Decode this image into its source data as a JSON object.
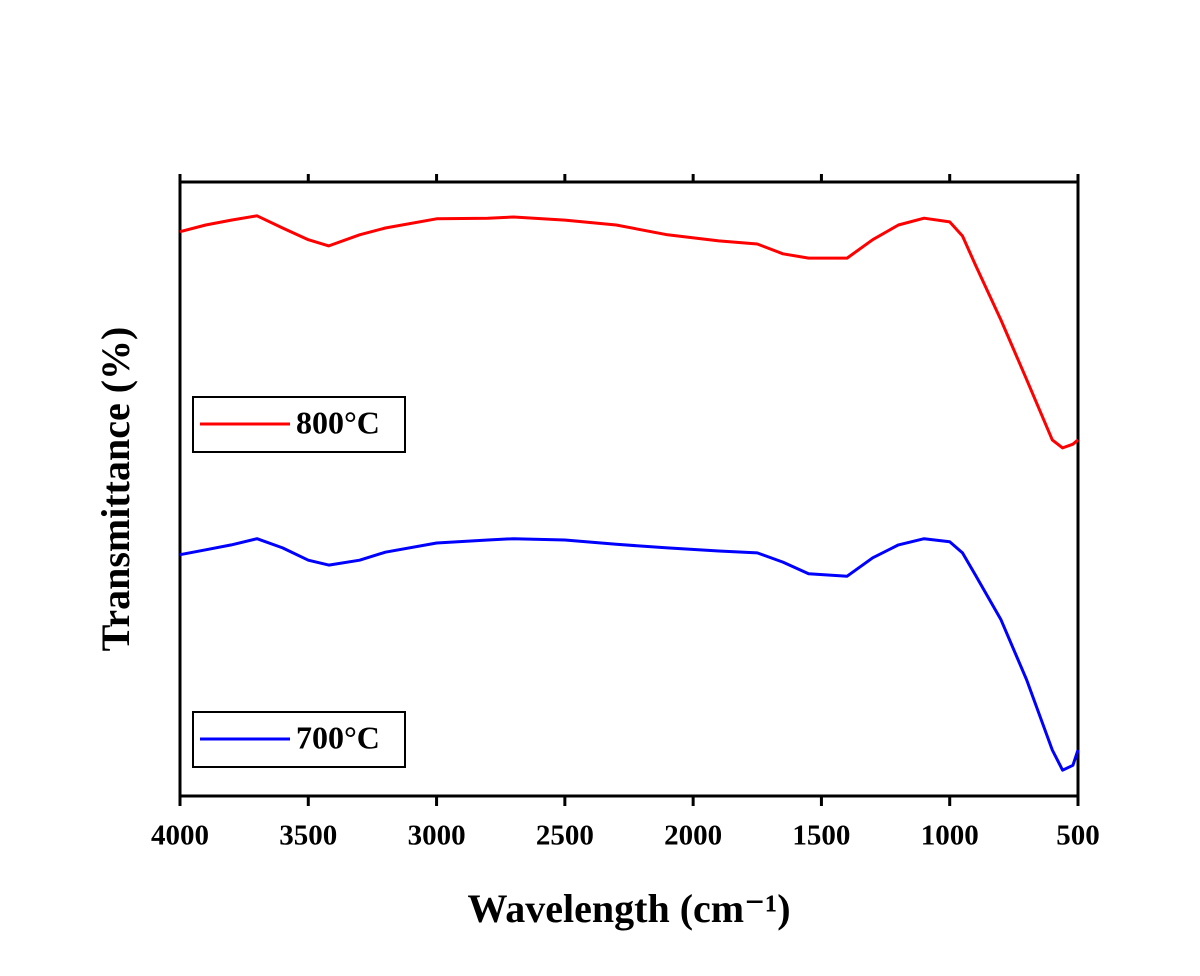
{
  "chart_data": {
    "type": "line",
    "xlabel": "Wavelength (cm⁻¹)",
    "ylabel": "Transmittance (%)",
    "xlim": [
      4000,
      500
    ],
    "xticks": [
      4000,
      3500,
      3000,
      2500,
      2000,
      1500,
      1000,
      500
    ],
    "ylim": [
      0,
      100
    ],
    "x": [
      4000,
      3900,
      3800,
      3700,
      3600,
      3500,
      3420,
      3300,
      3200,
      3000,
      2800,
      2700,
      2500,
      2300,
      2100,
      1900,
      1750,
      1650,
      1550,
      1400,
      1300,
      1200,
      1100,
      1000,
      950,
      900,
      800,
      700,
      600,
      560,
      520,
      500
    ],
    "series": [
      {
        "name": "800°C",
        "color": "#ff0000",
        "values": [
          91.9,
          93.0,
          93.8,
          94.5,
          92.5,
          90.6,
          89.6,
          91.4,
          92.5,
          94.0,
          94.1,
          94.3,
          93.8,
          93.0,
          91.4,
          90.4,
          89.9,
          88.3,
          87.6,
          87.6,
          90.6,
          93.0,
          94.1,
          93.5,
          91.2,
          86.5,
          77.5,
          67.8,
          58.0,
          56.7,
          57.3,
          58.0
        ]
      },
      {
        "name": "700°C",
        "color": "#0000ff",
        "values": [
          39.3,
          40.1,
          40.9,
          41.9,
          40.4,
          38.4,
          37.6,
          38.4,
          39.7,
          41.2,
          41.7,
          41.9,
          41.7,
          41.0,
          40.4,
          39.9,
          39.6,
          38.1,
          36.2,
          35.8,
          38.8,
          40.9,
          41.9,
          41.4,
          39.6,
          36.0,
          28.7,
          18.9,
          7.5,
          4.2,
          5.0,
          7.5
        ]
      }
    ]
  }
}
